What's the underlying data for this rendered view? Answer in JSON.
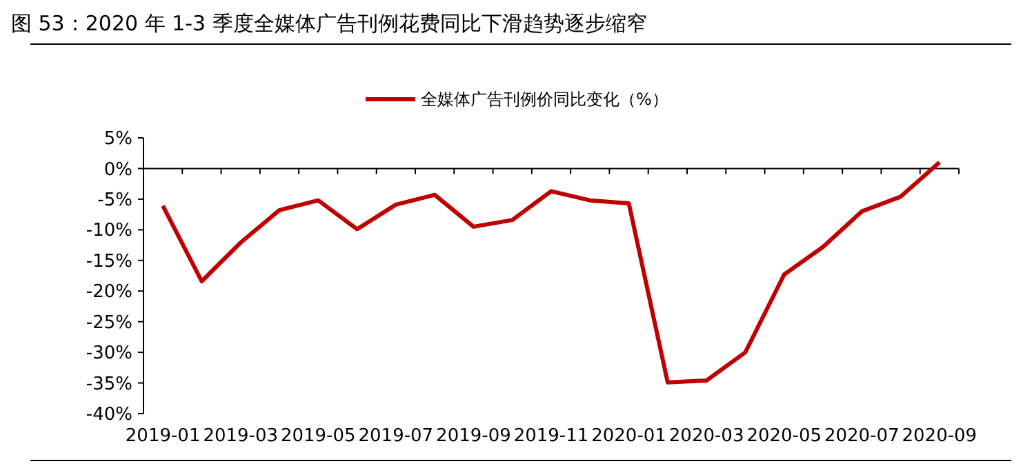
{
  "chart_data": {
    "type": "line",
    "title": "图 53：2020 年 1-3 季度全媒体广告刊例花费同比下滑趋势逐步缩窄",
    "categories": [
      "2019-01",
      null,
      "2019-03",
      null,
      "2019-05",
      null,
      "2019-07",
      null,
      "2019-09",
      null,
      "2019-11",
      null,
      "2020-01",
      null,
      "2020-03",
      null,
      "2020-05",
      null,
      "2020-07",
      null,
      "2020-09"
    ],
    "series": [
      {
        "name": "全媒体广告刊例价同比变化（%）",
        "color": "#c00000",
        "values": [
          -6.1,
          -18.4,
          -12.1,
          -6.8,
          -5.2,
          -9.9,
          -5.9,
          -4.3,
          -9.5,
          -8.4,
          -3.7,
          -5.2,
          -5.7,
          -34.9,
          -34.6,
          -30,
          -17.3,
          -12.8,
          -7.0,
          -4.6,
          1.0
        ]
      }
    ],
    "ylim": [
      -40,
      5
    ],
    "yticks": [
      {
        "value": 5,
        "label": "5%"
      },
      {
        "value": 0,
        "label": "0%"
      },
      {
        "value": -5,
        "label": "-5%"
      },
      {
        "value": -10,
        "label": "-10%"
      },
      {
        "value": -15,
        "label": "-15%"
      },
      {
        "value": -20,
        "label": "-20%"
      },
      {
        "value": -25,
        "label": "-25%"
      },
      {
        "value": -30,
        "label": "-30%"
      },
      {
        "value": -35,
        "label": "-35%"
      },
      {
        "value": -40,
        "label": "-40%"
      }
    ],
    "legend": "top",
    "marker": "none",
    "line_style": "solid"
  }
}
